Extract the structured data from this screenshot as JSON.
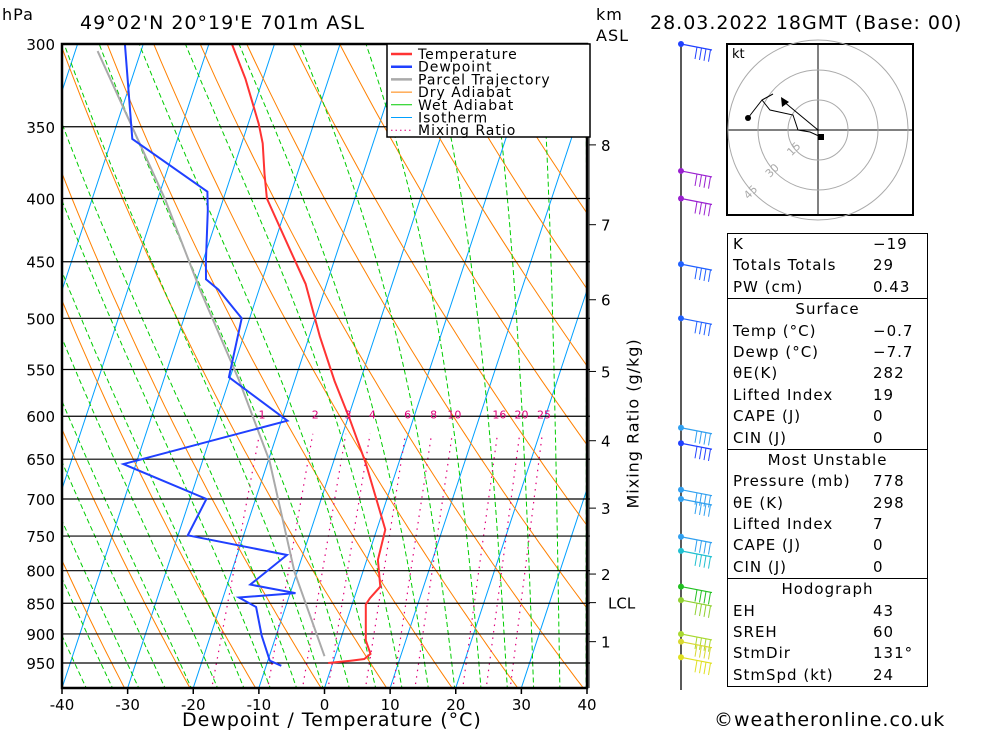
{
  "header": {
    "unit_left": "hPa",
    "location": "49°02'N 20°19'E 701m ASL",
    "unit_right_1": "km",
    "unit_right_2": "ASL",
    "datetime": "28.03.2022 18GMT (Base: 00)"
  },
  "footer": {
    "copyright": "©weatheronline.co.uk"
  },
  "chart_data": {
    "type": "line",
    "subtype": "skew-T log-P",
    "xlabel": "Dewpoint / Temperature (°C)",
    "ylabel": "hPa",
    "right_label": "Mixing Ratio (g/kg)",
    "xlim": [
      -40,
      40
    ],
    "ylim_hpa": [
      1000,
      300
    ],
    "x_ticks": [
      "-40",
      "-30",
      "-20",
      "-10",
      "0",
      "10",
      "20",
      "30",
      "40"
    ],
    "y_ticks": [
      "300",
      "350",
      "400",
      "450",
      "500",
      "550",
      "600",
      "650",
      "700",
      "750",
      "800",
      "850",
      "900",
      "950"
    ],
    "km_ticks": [
      {
        "label": "8",
        "p": 362
      },
      {
        "label": "7",
        "p": 420
      },
      {
        "label": "6",
        "p": 483
      },
      {
        "label": "5",
        "p": 552
      },
      {
        "label": "4",
        "p": 628
      },
      {
        "label": "3",
        "p": 712
      },
      {
        "label": "2",
        "p": 805
      },
      {
        "label": "LCL",
        "p": 849
      },
      {
        "label": "1",
        "p": 913
      }
    ],
    "mixing_ratio_labels": [
      "1",
      "2",
      "3",
      "4",
      "6",
      "8",
      "10",
      "16",
      "20",
      "25"
    ],
    "legend": [
      {
        "label": "Temperature",
        "color": "#ff3333",
        "style": "thick"
      },
      {
        "label": "Dewpoint",
        "color": "#2040ff",
        "style": "thick"
      },
      {
        "label": "Parcel Trajectory",
        "color": "#aaaaaa",
        "style": "thick"
      },
      {
        "label": "Dry Adiabat",
        "color": "#ff8000",
        "style": "thin"
      },
      {
        "label": "Wet Adiabat",
        "color": "#00cc00",
        "style": "thin"
      },
      {
        "label": "Isotherm",
        "color": "#00a0ff",
        "style": "thin"
      },
      {
        "label": "Mixing Ratio",
        "color": "#e0007a",
        "style": "dotted"
      }
    ],
    "series": [
      {
        "name": "Temperature",
        "color": "#ff3333",
        "points": [
          [
            300,
            -46.5
          ],
          [
            320,
            -42.7
          ],
          [
            348,
            -38.4
          ],
          [
            361,
            -36.8
          ],
          [
            382,
            -35
          ],
          [
            400,
            -33.4
          ],
          [
            440,
            -27.3
          ],
          [
            469,
            -23.2
          ],
          [
            517,
            -18.4
          ],
          [
            562,
            -13.9
          ],
          [
            604,
            -9.6
          ],
          [
            655,
            -5
          ],
          [
            741,
            1.3
          ],
          [
            784,
            1.7
          ],
          [
            824,
            3.4
          ],
          [
            842,
            2.4
          ],
          [
            852,
            2.1
          ],
          [
            911,
            3.9
          ],
          [
            934,
            5.3
          ],
          [
            943,
            4.6
          ],
          [
            946,
            2.6
          ],
          [
            950,
            -0.7
          ]
        ]
      },
      {
        "name": "Dewpoint",
        "color": "#2040ff",
        "points": [
          [
            300,
            -62.8
          ],
          [
            358,
            -56.9
          ],
          [
            395,
            -42.8
          ],
          [
            409,
            -41.8
          ],
          [
            450,
            -39.5
          ],
          [
            465,
            -38.6
          ],
          [
            474,
            -36.2
          ],
          [
            500,
            -31.2
          ],
          [
            558,
            -30.2
          ],
          [
            605,
            -19.1
          ],
          [
            656,
            -41.9
          ],
          [
            700,
            -27.5
          ],
          [
            749,
            -28.5
          ],
          [
            777,
            -12.4
          ],
          [
            821,
            -16.5
          ],
          [
            834,
            -9.2
          ],
          [
            841,
            -17.6
          ],
          [
            856,
            -14.5
          ],
          [
            903,
            -12.2
          ],
          [
            946,
            -9.7
          ],
          [
            955,
            -7.7
          ]
        ]
      },
      {
        "name": "Parcel Trajectory",
        "color": "#aaaaaa",
        "points": [
          [
            304,
            -66.6
          ],
          [
            348,
            -57.9
          ],
          [
            401,
            -48.8
          ],
          [
            474,
            -39
          ],
          [
            562,
            -28.4
          ],
          [
            652,
            -19.8
          ],
          [
            802,
            -10.4
          ],
          [
            938,
            -1.6
          ]
        ]
      }
    ],
    "wind_barbs": [
      {
        "p": 300,
        "color": "#2040ff"
      },
      {
        "p": 380,
        "color": "#9a20d0"
      },
      {
        "p": 400,
        "color": "#9a20d0"
      },
      {
        "p": 452,
        "color": "#2060ff"
      },
      {
        "p": 500,
        "color": "#2060ff"
      },
      {
        "p": 613,
        "color": "#30a0f0"
      },
      {
        "p": 631,
        "color": "#2040ff"
      },
      {
        "p": 688,
        "color": "#30a0f0"
      },
      {
        "p": 700,
        "color": "#30a0f0"
      },
      {
        "p": 751,
        "color": "#30a0f0"
      },
      {
        "p": 771,
        "color": "#20c0d0"
      },
      {
        "p": 824,
        "color": "#20c020"
      },
      {
        "p": 845,
        "color": "#90d030"
      },
      {
        "p": 900,
        "color": "#a8d830"
      },
      {
        "p": 913,
        "color": "#d8d830"
      },
      {
        "p": 940,
        "color": "#e0e020"
      }
    ],
    "hodograph": {
      "unit": "kt",
      "rings": [
        "15",
        "30",
        "45"
      ],
      "trace_uv": [
        [
          1.5,
          -3.5
        ],
        [
          -4,
          -1
        ],
        [
          -10,
          0
        ],
        [
          -12.5,
          7.5
        ],
        [
          -24,
          10
        ],
        [
          -28,
          15
        ],
        [
          -22.5,
          18
        ],
        [
          -28,
          15
        ],
        [
          -35,
          6
        ]
      ],
      "storm_motion_uv": [
        -17.5,
        14.5
      ]
    }
  },
  "indices": {
    "general": [
      {
        "label": "K",
        "value": "−19"
      },
      {
        "label": "Totals Totals",
        "value": "29"
      },
      {
        "label": "PW (cm)",
        "value": "0.43"
      }
    ],
    "surface": {
      "title": "Surface",
      "rows": [
        {
          "label": "Temp (°C)",
          "value": "−0.7"
        },
        {
          "label": "Dewp (°C)",
          "value": "−7.7"
        },
        {
          "label": "θE(K)",
          "value": "282"
        },
        {
          "label": "Lifted Index",
          "value": "19"
        },
        {
          "label": "CAPE (J)",
          "value": "0"
        },
        {
          "label": "CIN (J)",
          "value": "0"
        }
      ]
    },
    "most_unstable": {
      "title": "Most Unstable",
      "rows": [
        {
          "label": "Pressure (mb)",
          "value": "778"
        },
        {
          "label": "θE (K)",
          "value": "298"
        },
        {
          "label": "Lifted Index",
          "value": "7"
        },
        {
          "label": "CAPE (J)",
          "value": "0"
        },
        {
          "label": "CIN (J)",
          "value": "0"
        }
      ]
    },
    "hodograph": {
      "title": "Hodograph",
      "rows": [
        {
          "label": "EH",
          "value": "43"
        },
        {
          "label": "SREH",
          "value": "60"
        },
        {
          "label": "StmDir",
          "value": "131°"
        },
        {
          "label": "StmSpd (kt)",
          "value": "24"
        }
      ]
    }
  }
}
